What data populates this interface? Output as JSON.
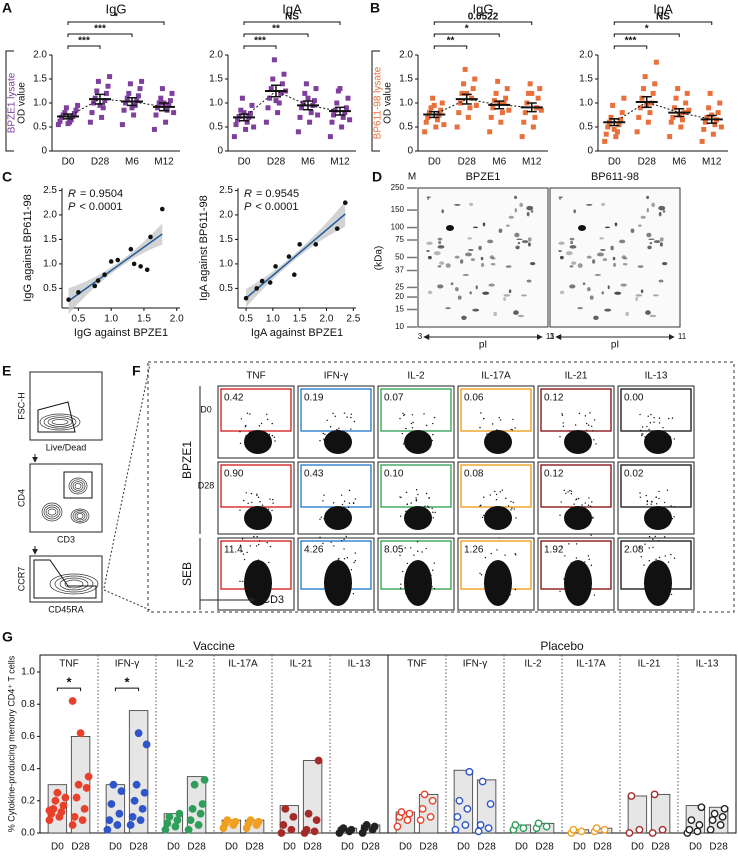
{
  "panel_labels": [
    "A",
    "B",
    "C",
    "D",
    "E",
    "F",
    "G"
  ],
  "chart_data": [
    {
      "type": "dot",
      "title": "IgG",
      "side_label": "BPZE1 lysate",
      "side_color": "#7e3f9d",
      "ylabel": "OD value",
      "categories": [
        "D0",
        "D28",
        "M6",
        "M12"
      ],
      "ylim": [
        0,
        2
      ],
      "yticks": [
        0,
        0.5,
        {
          "value": 1,
          "label": "1.0"
        },
        1.5,
        {
          "value": 2,
          "label": "2.0"
        }
      ],
      "color": "#7e3f9d",
      "groups": [
        {
          "points": [
            0.55,
            0.6,
            0.62,
            0.65,
            0.7,
            0.72,
            0.75,
            0.78,
            0.8,
            0.85,
            0.9,
            0.95,
            0.57
          ],
          "mean": 0.72,
          "sem": 0.05
        },
        {
          "points": [
            0.6,
            0.7,
            0.8,
            0.9,
            1.0,
            1.05,
            1.1,
            1.2,
            1.25,
            1.35,
            1.45,
            1.55,
            0.95
          ],
          "mean": 1.08,
          "sem": 0.1
        },
        {
          "points": [
            0.55,
            0.75,
            0.85,
            0.95,
            1.0,
            1.05,
            1.1,
            1.15,
            1.2,
            1.3,
            1.4,
            1.45,
            0.9
          ],
          "mean": 1.03,
          "sem": 0.08
        },
        {
          "points": [
            0.45,
            0.6,
            0.75,
            0.85,
            0.9,
            0.95,
            1.0,
            1.05,
            1.1,
            1.2,
            1.3,
            0.8,
            1.0
          ],
          "mean": 0.92,
          "sem": 0.08
        }
      ],
      "comparisons": [
        {
          "vs": "D28",
          "label": "***"
        },
        {
          "vs": "M6",
          "label": "***"
        },
        {
          "vs": "M12",
          "label": "*"
        }
      ]
    },
    {
      "type": "dot",
      "title": "IgA",
      "categories": [
        "D0",
        "D28",
        "M6",
        "M12"
      ],
      "ylim": [
        0,
        2
      ],
      "yticks": [
        0,
        0.5,
        {
          "value": 1,
          "label": "1.0"
        },
        1.5,
        {
          "value": 2,
          "label": "2.0"
        }
      ],
      "color": "#7e3f9d",
      "groups": [
        {
          "points": [
            0.3,
            0.45,
            0.55,
            0.6,
            0.65,
            0.7,
            0.72,
            0.78,
            0.85,
            0.95,
            1.1,
            0.5,
            0.8
          ],
          "mean": 0.7,
          "sem": 0.07
        },
        {
          "points": [
            0.6,
            0.8,
            0.9,
            1.0,
            1.1,
            1.2,
            1.3,
            1.4,
            1.5,
            1.6,
            1.9,
            1.25,
            1.05
          ],
          "mean": 1.25,
          "sem": 0.12
        },
        {
          "points": [
            0.4,
            0.6,
            0.7,
            0.8,
            0.9,
            0.95,
            1.0,
            1.05,
            1.2,
            1.3,
            1.4,
            0.75,
            1.1
          ],
          "mean": 0.95,
          "sem": 0.09
        },
        {
          "points": [
            0.3,
            0.5,
            0.6,
            0.7,
            0.75,
            0.8,
            0.85,
            0.9,
            1.0,
            1.1,
            1.25,
            0.65,
            1.3
          ],
          "mean": 0.83,
          "sem": 0.08
        }
      ],
      "comparisons": [
        {
          "vs": "D28",
          "label": "***"
        },
        {
          "vs": "M6",
          "label": "**"
        },
        {
          "vs": "M12",
          "label": "NS"
        }
      ]
    },
    {
      "type": "dot",
      "title": "IgG",
      "side_label": "BP611-98 lysate",
      "side_color": "#e9703a",
      "ylabel": "OD value",
      "categories": [
        "D0",
        "D28",
        "M6",
        "M12"
      ],
      "ylim": [
        0,
        2
      ],
      "yticks": [
        0,
        0.5,
        {
          "value": 1,
          "label": "1.0"
        },
        1.5,
        {
          "value": 2,
          "label": "2.0"
        }
      ],
      "color": "#e9703a",
      "groups": [
        {
          "points": [
            0.4,
            0.5,
            0.6,
            0.65,
            0.7,
            0.75,
            0.8,
            0.85,
            0.9,
            1.0,
            1.1,
            0.55,
            0.95
          ],
          "mean": 0.76,
          "sem": 0.06
        },
        {
          "points": [
            0.5,
            0.7,
            0.8,
            0.9,
            1.0,
            1.1,
            1.2,
            1.3,
            1.4,
            1.5,
            1.7,
            0.95,
            1.2
          ],
          "mean": 1.08,
          "sem": 0.1
        },
        {
          "points": [
            0.4,
            0.6,
            0.7,
            0.8,
            0.9,
            1.0,
            1.05,
            1.1,
            1.2,
            1.3,
            1.45,
            0.85,
            1.0
          ],
          "mean": 0.96,
          "sem": 0.08
        },
        {
          "points": [
            0.3,
            0.5,
            0.6,
            0.7,
            0.8,
            0.9,
            1.0,
            1.1,
            1.2,
            1.3,
            1.4,
            0.85,
            1.2
          ],
          "mean": 0.91,
          "sem": 0.09
        }
      ],
      "comparisons": [
        {
          "vs": "D28",
          "label": "**"
        },
        {
          "vs": "M6",
          "label": "*"
        },
        {
          "vs": "M12",
          "label": "0.0522"
        }
      ]
    },
    {
      "type": "dot",
      "title": "IgA",
      "categories": [
        "D0",
        "D28",
        "M6",
        "M12"
      ],
      "ylim": [
        0,
        2
      ],
      "yticks": [
        0,
        0.5,
        {
          "value": 1,
          "label": "1.0"
        },
        1.5,
        {
          "value": 2,
          "label": "2.0"
        }
      ],
      "color": "#e9703a",
      "groups": [
        {
          "points": [
            0.2,
            0.3,
            0.35,
            0.4,
            0.5,
            0.55,
            0.6,
            0.65,
            0.7,
            0.8,
            0.95,
            1.1,
            0.45
          ],
          "mean": 0.6,
          "sem": 0.07
        },
        {
          "points": [
            0.4,
            0.6,
            0.7,
            0.8,
            0.9,
            1.0,
            1.1,
            1.2,
            1.3,
            1.4,
            1.55,
            1.85,
            0.95
          ],
          "mean": 1.02,
          "sem": 0.11
        },
        {
          "points": [
            0.3,
            0.5,
            0.6,
            0.65,
            0.7,
            0.8,
            0.9,
            1.0,
            1.1,
            1.2,
            1.3,
            0.85,
            0.75
          ],
          "mean": 0.8,
          "sem": 0.08
        },
        {
          "points": [
            0.2,
            0.35,
            0.45,
            0.55,
            0.6,
            0.65,
            0.7,
            0.8,
            0.9,
            1.0,
            1.2,
            0.5,
            0.75
          ],
          "mean": 0.66,
          "sem": 0.08
        }
      ],
      "comparisons": [
        {
          "vs": "D28",
          "label": "***"
        },
        {
          "vs": "M6",
          "label": "*"
        },
        {
          "vs": "M12",
          "label": "NS"
        }
      ]
    },
    {
      "type": "scatter",
      "xlabel": "IgG against BPZE1",
      "ylabel": "IgG against BP611-98",
      "stats": [
        {
          "name": "R",
          "text": "= 0.9504"
        },
        {
          "name": "P",
          "text": "< 0.0001"
        }
      ],
      "x": [
        0.35,
        0.5,
        0.75,
        0.8,
        0.9,
        1.0,
        1.1,
        1.3,
        1.35,
        1.45,
        1.55,
        1.6,
        1.78
      ],
      "y": [
        0.27,
        0.42,
        0.55,
        0.66,
        0.78,
        1.05,
        1.08,
        1.3,
        1.0,
        0.95,
        0.88,
        1.55,
        2.12
      ],
      "xlim": [
        0.25,
        2.05
      ],
      "xticks": [
        0.5,
        {
          "value": 1,
          "label": "1.0"
        },
        1.5,
        {
          "value": 2,
          "label": "2.0"
        }
      ],
      "ylim": [
        0.1,
        2.55
      ],
      "yticks": [
        0.5,
        {
          "value": 1,
          "label": "1.0"
        },
        1.5,
        {
          "value": 2,
          "label": "2.0"
        },
        2.5
      ],
      "color": "#111111"
    },
    {
      "type": "scatter",
      "xlabel": "IgA against BPZE1",
      "ylabel": "IgA against BP611-98",
      "stats": [
        {
          "name": "R",
          "text": "= 0.9545"
        },
        {
          "name": "P",
          "text": "< 0.0001"
        }
      ],
      "x": [
        0.5,
        0.7,
        0.8,
        0.95,
        1.05,
        1.3,
        1.4,
        1.5,
        1.8,
        2.2,
        2.35
      ],
      "y": [
        0.3,
        0.5,
        0.65,
        0.62,
        0.95,
        1.15,
        0.78,
        1.4,
        1.4,
        1.72,
        2.25
      ],
      "xlim": [
        0.35,
        2.55
      ],
      "xticks": [
        0.5,
        {
          "value": 1,
          "label": "1.0"
        },
        1.5,
        {
          "value": 2,
          "label": "2.0"
        },
        2.5
      ],
      "ylim": [
        0.1,
        2.55
      ],
      "yticks": [
        0.5,
        {
          "value": 1,
          "label": "1.0"
        },
        1.5,
        {
          "value": 2,
          "label": "2.0"
        },
        2.5
      ],
      "color": "#111111"
    },
    {
      "type": "bar",
      "ylabel": "% Cytokine-producing memory CD4⁺ T cells",
      "categories": [
        "D0",
        "D28"
      ],
      "ylim": [
        0,
        1
      ],
      "yticks": [
        {
          "value": 0,
          "label": "0.0"
        },
        0.2,
        0.4,
        0.6,
        0.8,
        {
          "value": 1,
          "label": "1.0"
        }
      ],
      "sections": [
        {
          "name": "Vaccine",
          "marker": "filled",
          "groups": [
            {
              "name": "TNF",
              "color": "#e8402a",
              "bars": [
                0.3,
                0.6
              ],
              "points": [
                [
                  0.08,
                  0.1,
                  0.12,
                  0.13,
                  0.15,
                  0.17,
                  0.2,
                  0.22,
                  0.25,
                  0.14
                ],
                [
                  0.05,
                  0.08,
                  0.1,
                  0.15,
                  0.22,
                  0.28,
                  0.3,
                  0.35,
                  0.62,
                  0.82
                ]
              ],
              "sig": "*"
            },
            {
              "name": "IFN-γ",
              "color": "#2f55c8",
              "bars": [
                0.3,
                0.76
              ],
              "points": [
                [
                  0.02,
                  0.05,
                  0.08,
                  0.12,
                  0.18,
                  0.26,
                  0.3
                ],
                [
                  0.05,
                  0.08,
                  0.1,
                  0.15,
                  0.2,
                  0.25,
                  0.3,
                  0.55,
                  0.62
                ]
              ],
              "sig": "*"
            },
            {
              "name": "IL-2",
              "color": "#2e9e5a",
              "bars": [
                0.12,
                0.35
              ],
              "points": [
                [
                  0.02,
                  0.04,
                  0.06,
                  0.08,
                  0.1,
                  0.12
                ],
                [
                  0.02,
                  0.05,
                  0.08,
                  0.12,
                  0.15,
                  0.18,
                  0.3,
                  0.33
                ]
              ]
            },
            {
              "name": "IL-17A",
              "color": "#f0a020",
              "bars": [
                0.08,
                0.08
              ],
              "points": [
                [
                  0.03,
                  0.05,
                  0.06,
                  0.07,
                  0.08
                ],
                [
                  0.03,
                  0.05,
                  0.06,
                  0.07,
                  0.08
                ]
              ]
            },
            {
              "name": "IL-21",
              "color": "#a52a2a",
              "bars": [
                0.17,
                0.45
              ],
              "points": [
                [
                  0,
                  0.02,
                  0.05,
                  0.1,
                  0.15
                ],
                [
                  0,
                  0.01,
                  0.02,
                  0.08,
                  0.12,
                  0.45
                ]
              ]
            },
            {
              "name": "IL-13",
              "color": "#222222",
              "bars": [
                0.03,
                0.05
              ],
              "points": [
                [
                  0,
                  0.01,
                  0.02,
                  0.02,
                  0.03
                ],
                [
                  0,
                  0.02,
                  0.03,
                  0.04,
                  0.05
                ]
              ]
            }
          ]
        },
        {
          "name": "Placebo",
          "marker": "open",
          "groups": [
            {
              "name": "TNF",
              "color": "#e8402a",
              "bars": [
                0.13,
                0.24
              ],
              "points": [
                [
                  0.04,
                  0.08,
                  0.1,
                  0.12,
                  0.13
                ],
                [
                  0.08,
                  0.1,
                  0.15,
                  0.2,
                  0.24
                ]
              ]
            },
            {
              "name": "IFN-γ",
              "color": "#2f55c8",
              "bars": [
                0.39,
                0.33
              ],
              "points": [
                [
                  0.02,
                  0.05,
                  0.1,
                  0.15,
                  0.2,
                  0.38
                ],
                [
                  0.01,
                  0.03,
                  0.05,
                  0.18,
                  0.32
                ]
              ]
            },
            {
              "name": "IL-2",
              "color": "#2e9e5a",
              "bars": [
                0.05,
                0.06
              ],
              "points": [
                [
                  0.02,
                  0.03,
                  0.05
                ],
                [
                  0.03,
                  0.04,
                  0.06
                ]
              ]
            },
            {
              "name": "IL-17A",
              "color": "#f0a020",
              "bars": [
                0.02,
                0.03
              ],
              "points": [
                [
                  0,
                  0.01,
                  0.02
                ],
                [
                  0.01,
                  0.02,
                  0.03
                ]
              ]
            },
            {
              "name": "IL-21",
              "color": "#a52a2a",
              "bars": [
                0.23,
                0.24
              ],
              "points": [
                [
                  0,
                  0.02,
                  0.23
                ],
                [
                  0,
                  0.02,
                  0.24
                ]
              ]
            },
            {
              "name": "IL-13",
              "color": "#222222",
              "bars": [
                0.17,
                0.16
              ],
              "points": [
                [
                  0,
                  0.01,
                  0.02,
                  0.05,
                  0.08,
                  0.16
                ],
                [
                  0.02,
                  0.05,
                  0.08,
                  0.1,
                  0.12,
                  0.15
                ]
              ]
            }
          ]
        }
      ]
    }
  ],
  "gel": {
    "marker_label": "M",
    "unit_label": "(kDa)",
    "markers": [
      250,
      150,
      100,
      75,
      50,
      37,
      25,
      20,
      15,
      10
    ],
    "gels": [
      "BPZE1",
      "BP611-98"
    ],
    "ph_from": 3,
    "ph_to": 11,
    "ph_label": "pI"
  },
  "gating": {
    "plots": [
      {
        "y_label": "FSC-H",
        "x_label": "Live/Dead"
      },
      {
        "y_label": "CD4",
        "x_label": "CD3"
      },
      {
        "y_label": "CCR7",
        "x_label": "CD45RA"
      }
    ]
  },
  "flow": {
    "columns": [
      "TNF",
      "IFN-γ",
      "IL-2",
      "IL-17A",
      "IL-21",
      "IL-13"
    ],
    "gate_colors": [
      "#d62828",
      "#2f80d0",
      "#3aa55a",
      "#f0a020",
      "#8b1a1a",
      "#222222"
    ],
    "row_groups": [
      {
        "name": "BPZE1",
        "rows": [
          {
            "name": "D0",
            "values": [
              "0.42",
              "0.19",
              "0.07",
              "0.06",
              "0.12",
              "0.00"
            ]
          },
          {
            "name": "D28",
            "values": [
              "0.90",
              "0.43",
              "0.10",
              "0.08",
              "0.12",
              "0.02"
            ]
          }
        ]
      },
      {
        "name": "SEB",
        "rows": [
          {
            "values": [
              "11.4",
              "4.26",
              "8.05",
              "1.26",
              "1.92",
              "2.08"
            ]
          }
        ]
      }
    ],
    "x_label": "CD3"
  }
}
